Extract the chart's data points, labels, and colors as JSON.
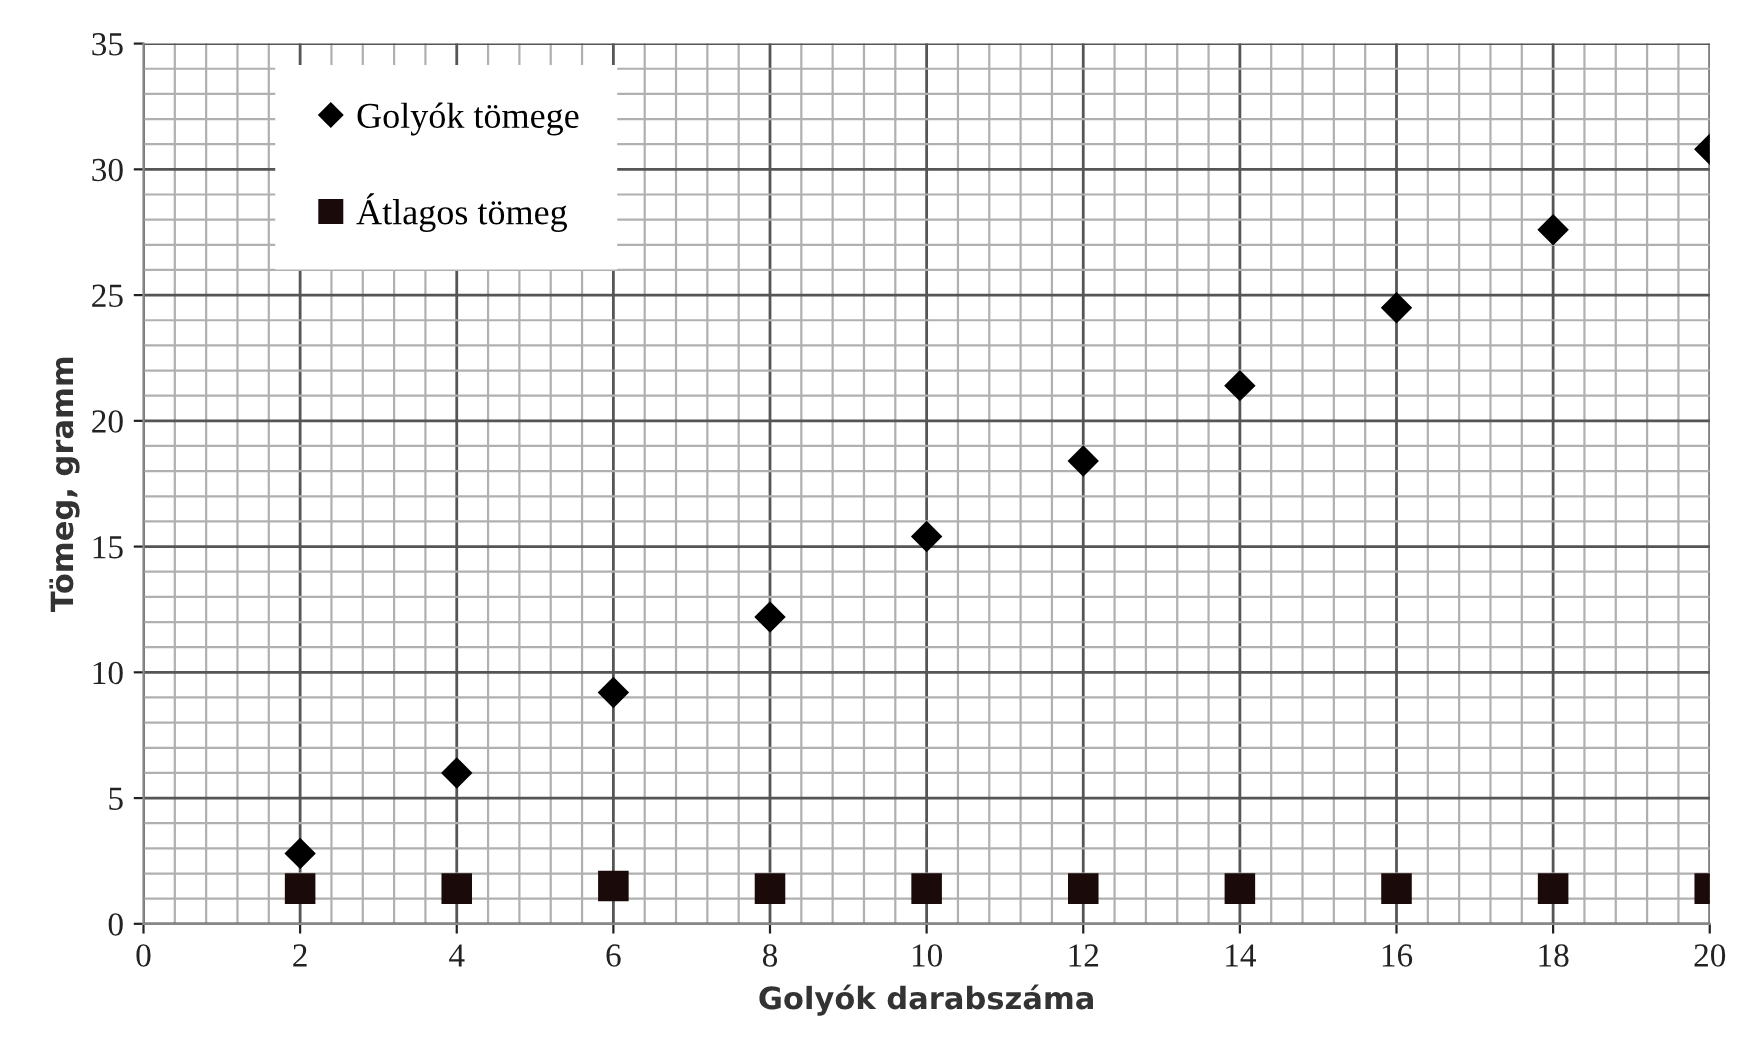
{
  "chart_data": {
    "type": "scatter",
    "xlabel": "Golyók darabszáma",
    "ylabel": "Tömeg, gramm",
    "x": [
      2,
      4,
      6,
      8,
      10,
      12,
      14,
      16,
      18,
      20
    ],
    "series": [
      {
        "name": "Golyók tömege",
        "color": "#000000",
        "marker": "diamond",
        "values": [
          2.8,
          6.0,
          9.2,
          12.2,
          15.4,
          18.4,
          21.4,
          24.5,
          27.6,
          30.8
        ]
      },
      {
        "name": "Átlagos tömeg",
        "color": "#1a0a0a",
        "marker": "square",
        "values": [
          1.4,
          1.4,
          1.5,
          1.4,
          1.4,
          1.4,
          1.4,
          1.4,
          1.4,
          1.4
        ]
      }
    ],
    "xlim": [
      0,
      20
    ],
    "ylim": [
      0,
      35
    ],
    "xticks": [
      0,
      2,
      4,
      6,
      8,
      10,
      12,
      14,
      16,
      18,
      20
    ],
    "yticks": [
      0,
      5,
      10,
      15,
      20,
      25,
      30,
      35
    ],
    "grid": true,
    "legend": "top left"
  }
}
